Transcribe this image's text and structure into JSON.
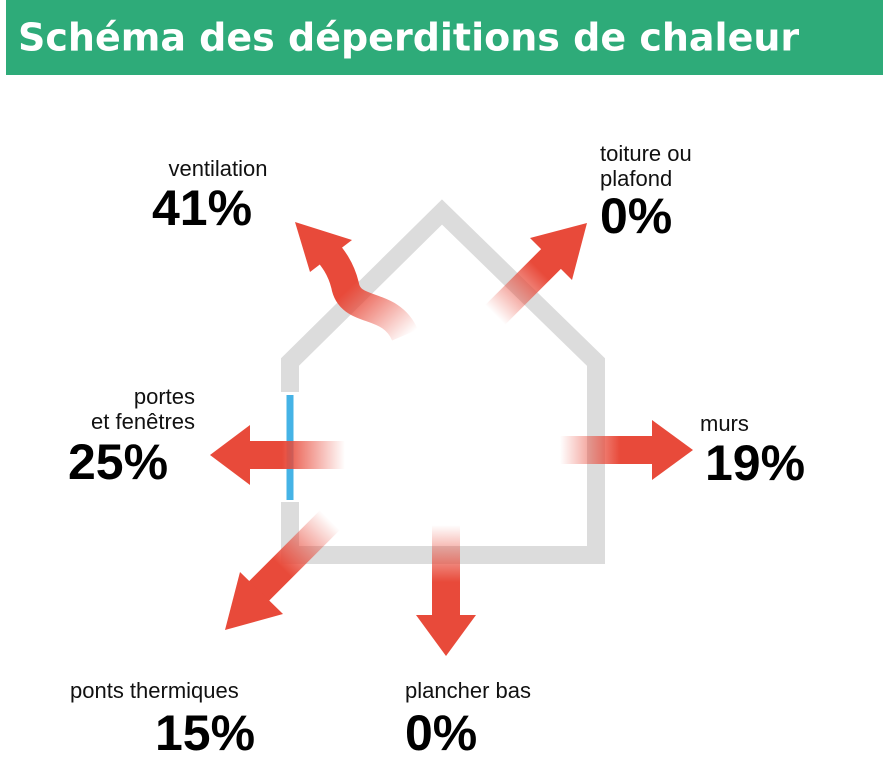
{
  "title": "Schéma des déperditions de chaleur",
  "items": [
    {
      "lines": [
        "ventilation"
      ],
      "value": "41%"
    },
    {
      "lines": [
        "toiture ou",
        "plafond"
      ],
      "value": "0%"
    },
    {
      "lines": [
        "portes",
        "et fenêtres"
      ],
      "value": "25%"
    },
    {
      "lines": [
        "murs"
      ],
      "value": "19%"
    },
    {
      "lines": [
        "ponts thermiques"
      ],
      "value": "15%"
    },
    {
      "lines": [
        "plancher bas"
      ],
      "value": "0%"
    }
  ]
}
